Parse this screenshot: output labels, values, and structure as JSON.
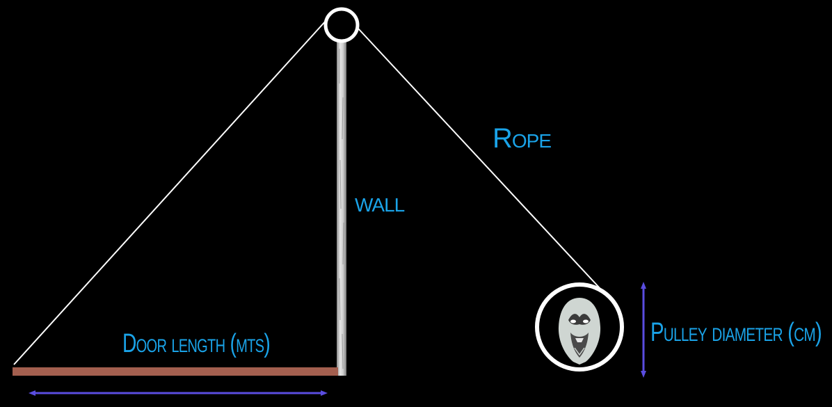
{
  "labels": {
    "rope": "Rope",
    "wall": "wall",
    "door_length": "Door length (mts)",
    "pulley_diameter": "Pulley diameter (cm)"
  },
  "colors": {
    "background": "#000000",
    "label": "#1aa3e8",
    "rope": "#ffffff",
    "door": "#a35f4f",
    "dimension_arrow": "#5a4de0",
    "wall": "#d9d9d9"
  },
  "icons": {
    "top_pulley": "pulley-icon",
    "weight": "hooded-face-icon"
  }
}
